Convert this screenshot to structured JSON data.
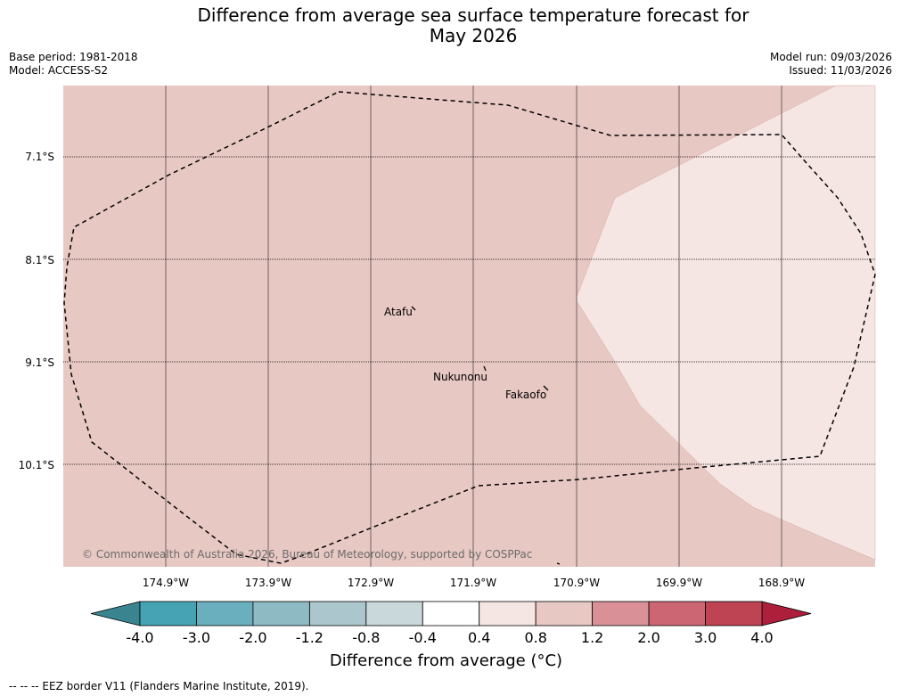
{
  "title_line1": "Difference from average sea surface temperature forecast for",
  "title_line2": "May 2026",
  "base_period": "Base period: 1981-2018",
  "model": "Model: ACCESS-S2",
  "model_run": "Model run: 09/03/2026",
  "issued": "Issued: 11/03/2026",
  "lat_labels": [
    "7.1°S",
    "8.1°S",
    "9.1°S",
    "10.1°S"
  ],
  "lon_labels": [
    "174.9°W",
    "173.9°W",
    "172.9°W",
    "171.9°W",
    "170.9°W",
    "169.9°W",
    "168.9°W"
  ],
  "places": [
    "Atafu",
    "Nukunonu",
    "Fakaofo"
  ],
  "credit": "© Commonwealth of Australia 2026, Bureau of Meteorology, supported by COSPPac",
  "colorbar": {
    "ticks": [
      "-4.0",
      "-3.0",
      "-2.0",
      "-1.2",
      "-0.8",
      "-0.4",
      "0.4",
      "0.8",
      "1.2",
      "2.0",
      "3.0",
      "4.0"
    ],
    "colors": [
      "#45a3b3",
      "#6aafbd",
      "#8ebac4",
      "#abc7cd",
      "#c9d8da",
      "#ffffff",
      "#f5e6e4",
      "#e8c8c3",
      "#d99197",
      "#cd6673",
      "#bf4453"
    ],
    "low_color": "#3a8490",
    "high_color": "#ad1f3a",
    "title": "Difference from average (°C)"
  },
  "legend_note": "--  --  -- EEZ border V11 (Flanders Marine Institute, 2019).",
  "field_colors": {
    "main": "#e8c8c3",
    "light": "#f5e6e4"
  }
}
